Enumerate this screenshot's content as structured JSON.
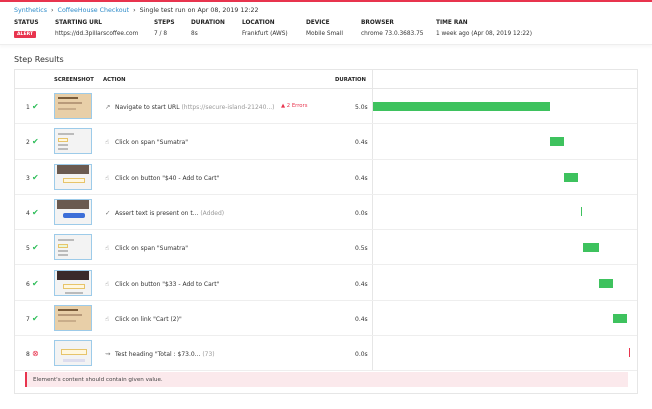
{
  "breadcrumb": {
    "items": [
      "Synthetics",
      "CoffeeHouse Checkout"
    ],
    "current": "Single test run on Apr 08, 2019 12:22"
  },
  "meta": [
    {
      "label": "STATUS",
      "value": "ALERT"
    },
    {
      "label": "STARTING URL",
      "value": "https://dd.3pillarscoffee.com"
    },
    {
      "label": "STEPS",
      "value": "7 / 8"
    },
    {
      "label": "DURATION",
      "value": "8s"
    },
    {
      "label": "LOCATION",
      "value": "Frankfurt (AWS)"
    },
    {
      "label": "DEVICE",
      "value": "Mobile Small"
    },
    {
      "label": "BROWSER",
      "value": "chrome 73.0.3683.75"
    },
    {
      "label": "TIME RAN",
      "value": "1 week ago (Apr 08, 2019 12:22)"
    }
  ],
  "section_title": "Step Results",
  "columns": {
    "screenshot": "SCREENSHOT",
    "action": "ACTION",
    "duration": "DURATION"
  },
  "colors": {
    "accent": "#e8344e",
    "success": "#3ec25e",
    "link": "#2e8bc9"
  },
  "steps": [
    {
      "num": "1",
      "status": "passed",
      "icon": "external-link-icon",
      "action": "Navigate to start URL",
      "detail": "(https://secure-island-21240...)",
      "errors": "2 Errors",
      "duration": "5.0s",
      "start": 0,
      "length": 5.0
    },
    {
      "num": "2",
      "status": "passed",
      "icon": "pointer-icon",
      "action": "Click on span \"Sumatra\"",
      "detail": "",
      "duration": "0.4s",
      "start": 5.0,
      "length": 0.4
    },
    {
      "num": "3",
      "status": "passed",
      "icon": "pointer-icon",
      "action": "Click on button \"$40 - Add to Cart\"",
      "detail": "",
      "duration": "0.4s",
      "start": 5.4,
      "length": 0.4
    },
    {
      "num": "4",
      "status": "passed",
      "icon": "assert-text-icon",
      "action": "Assert text is present on t...",
      "detail": "(Added)",
      "duration": "0.0s",
      "start": 5.9,
      "length": 0
    },
    {
      "num": "5",
      "status": "passed",
      "icon": "pointer-icon",
      "action": "Click on span \"Sumatra\"",
      "detail": "",
      "duration": "0.5s",
      "start": 5.95,
      "length": 0.45
    },
    {
      "num": "6",
      "status": "passed",
      "icon": "pointer-icon",
      "action": "Click on button \"$33 - Add to Cart\"",
      "detail": "",
      "duration": "0.4s",
      "start": 6.4,
      "length": 0.4
    },
    {
      "num": "7",
      "status": "passed",
      "icon": "pointer-icon",
      "action": "Click on link \"Cart (2)\"",
      "detail": "",
      "duration": "0.4s",
      "start": 6.8,
      "length": 0.4
    },
    {
      "num": "8",
      "status": "failed",
      "icon": "test-heading-icon",
      "action": "Test heading \"Total : $73.0...",
      "detail": "(73)",
      "duration": "0.0s",
      "start": 7.25,
      "length": 0
    }
  ],
  "error_message": "Element's content should contain given value."
}
